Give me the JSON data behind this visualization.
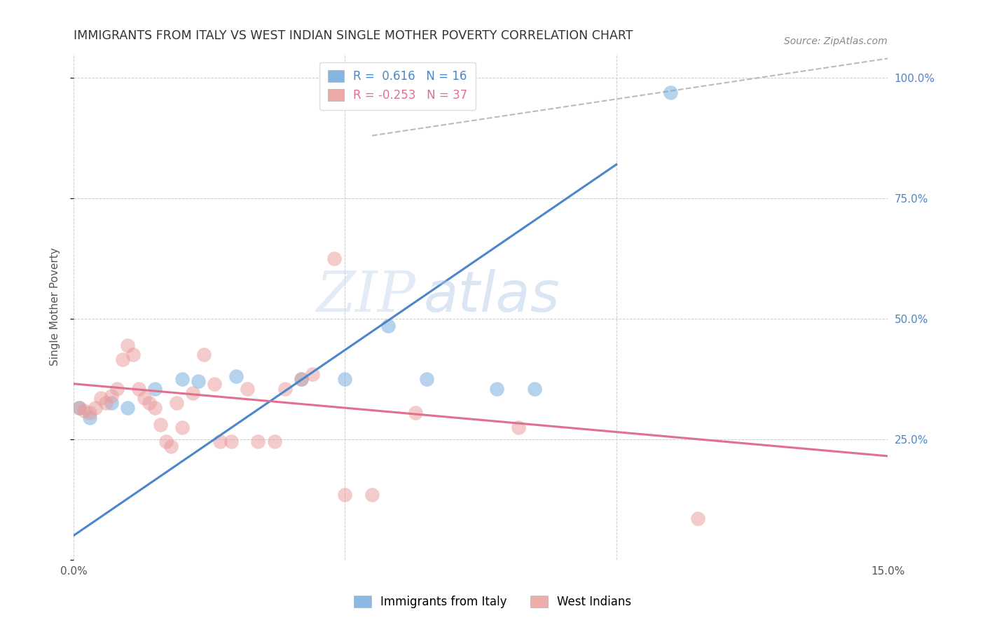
{
  "title": "IMMIGRANTS FROM ITALY VS WEST INDIAN SINGLE MOTHER POVERTY CORRELATION CHART",
  "source": "Source: ZipAtlas.com",
  "ylabel": "Single Mother Poverty",
  "x_min": 0.0,
  "x_max": 0.15,
  "y_min": 0.0,
  "y_max": 1.05,
  "legend_italy_r": "0.616",
  "legend_italy_n": "16",
  "legend_wi_r": "-0.253",
  "legend_wi_n": "37",
  "italy_color": "#6fa8dc",
  "wi_color": "#ea9999",
  "italy_line_x": [
    0.0,
    0.1
  ],
  "italy_line_y": [
    0.05,
    0.82
  ],
  "wi_line_x": [
    0.0,
    0.15
  ],
  "wi_line_y": [
    0.365,
    0.215
  ],
  "dash_line_x": [
    0.055,
    0.15
  ],
  "dash_line_y": [
    0.88,
    1.04
  ],
  "italy_scatter": [
    [
      0.001,
      0.315
    ],
    [
      0.003,
      0.295
    ],
    [
      0.007,
      0.325
    ],
    [
      0.01,
      0.315
    ],
    [
      0.015,
      0.355
    ],
    [
      0.02,
      0.375
    ],
    [
      0.023,
      0.37
    ],
    [
      0.03,
      0.38
    ],
    [
      0.042,
      0.375
    ],
    [
      0.05,
      0.375
    ],
    [
      0.058,
      0.485
    ],
    [
      0.065,
      0.375
    ],
    [
      0.078,
      0.355
    ],
    [
      0.085,
      0.355
    ],
    [
      0.06,
      1.0
    ],
    [
      0.11,
      0.97
    ]
  ],
  "wi_scatter": [
    [
      0.001,
      0.315
    ],
    [
      0.002,
      0.31
    ],
    [
      0.003,
      0.305
    ],
    [
      0.004,
      0.315
    ],
    [
      0.005,
      0.335
    ],
    [
      0.006,
      0.325
    ],
    [
      0.007,
      0.34
    ],
    [
      0.008,
      0.355
    ],
    [
      0.009,
      0.415
    ],
    [
      0.01,
      0.445
    ],
    [
      0.011,
      0.425
    ],
    [
      0.012,
      0.355
    ],
    [
      0.013,
      0.335
    ],
    [
      0.014,
      0.325
    ],
    [
      0.015,
      0.315
    ],
    [
      0.016,
      0.28
    ],
    [
      0.017,
      0.245
    ],
    [
      0.018,
      0.235
    ],
    [
      0.019,
      0.325
    ],
    [
      0.02,
      0.275
    ],
    [
      0.022,
      0.345
    ],
    [
      0.024,
      0.425
    ],
    [
      0.026,
      0.365
    ],
    [
      0.027,
      0.245
    ],
    [
      0.029,
      0.245
    ],
    [
      0.032,
      0.355
    ],
    [
      0.034,
      0.245
    ],
    [
      0.037,
      0.245
    ],
    [
      0.039,
      0.355
    ],
    [
      0.042,
      0.375
    ],
    [
      0.044,
      0.385
    ],
    [
      0.048,
      0.625
    ],
    [
      0.05,
      0.135
    ],
    [
      0.055,
      0.135
    ],
    [
      0.063,
      0.305
    ],
    [
      0.082,
      0.275
    ],
    [
      0.115,
      0.085
    ]
  ],
  "watermark_zip": "ZIP",
  "watermark_atlas": "atlas",
  "background_color": "#ffffff",
  "grid_color": "#cccccc"
}
